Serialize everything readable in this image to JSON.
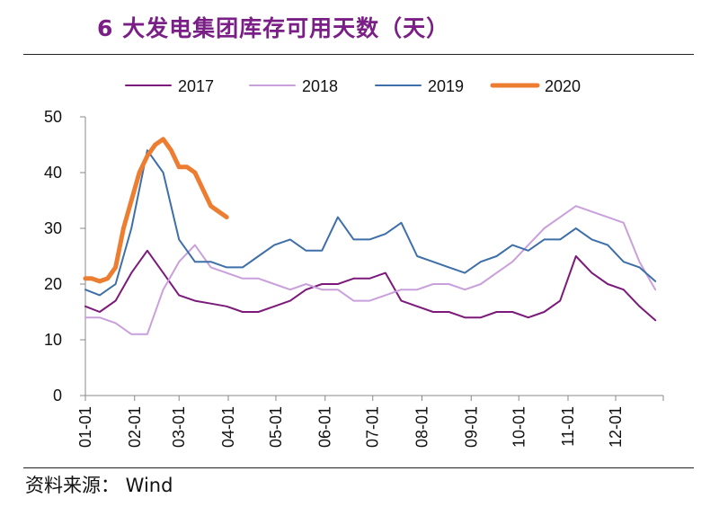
{
  "header": {
    "title": "6 大发电集团库存可用天数（天）"
  },
  "footer": {
    "source": "资料来源： Wind"
  },
  "chart_data": {
    "type": "line",
    "title": "6 大发电集团库存可用天数（天）",
    "xlabel": "",
    "ylabel": "",
    "ylim": [
      0,
      50
    ],
    "yticks": [
      0,
      10,
      20,
      30,
      40,
      50
    ],
    "xticks": [
      "01-01",
      "02-01",
      "03-01",
      "04-01",
      "05-01",
      "06-01",
      "07-01",
      "08-01",
      "09-01",
      "10-01",
      "11-01",
      "12-01"
    ],
    "x_unit": "day-of-year",
    "grid": false,
    "legend": "top",
    "colors": {
      "2017": "#7b1a7b",
      "2018": "#c9a0dc",
      "2019": "#3f6fa8",
      "2020": "#ed7d31"
    },
    "series": [
      {
        "name": "2017",
        "x": [
          1,
          10,
          20,
          30,
          40,
          50,
          60,
          70,
          80,
          90,
          100,
          110,
          120,
          130,
          140,
          150,
          160,
          170,
          180,
          190,
          200,
          210,
          220,
          230,
          240,
          250,
          260,
          270,
          280,
          290,
          300,
          310,
          320,
          330,
          340,
          350,
          360
        ],
        "values": [
          16,
          15,
          17,
          22,
          26,
          22,
          18,
          17,
          16.5,
          16,
          15,
          15,
          16,
          17,
          19,
          20,
          20,
          21,
          21,
          22,
          17,
          16,
          15,
          15,
          14,
          14,
          15,
          15,
          14,
          15,
          17,
          25,
          22,
          20,
          19,
          16,
          13.5
        ]
      },
      {
        "name": "2018",
        "x": [
          1,
          10,
          20,
          30,
          40,
          50,
          60,
          70,
          80,
          90,
          100,
          110,
          120,
          130,
          140,
          150,
          160,
          170,
          180,
          190,
          200,
          210,
          220,
          230,
          240,
          250,
          260,
          270,
          280,
          290,
          300,
          310,
          320,
          330,
          340,
          350,
          360
        ],
        "values": [
          14,
          14,
          13,
          11,
          11,
          19,
          24,
          27,
          23,
          22,
          21,
          21,
          20,
          19,
          20,
          19,
          19,
          17,
          17,
          18,
          19,
          19,
          20,
          20,
          19,
          20,
          22,
          24,
          27,
          30,
          32,
          34,
          33,
          32,
          31,
          24,
          19
        ]
      },
      {
        "name": "2019",
        "x": [
          1,
          10,
          20,
          30,
          40,
          50,
          60,
          70,
          80,
          90,
          100,
          110,
          120,
          130,
          140,
          150,
          160,
          170,
          180,
          190,
          200,
          210,
          220,
          230,
          240,
          250,
          260,
          270,
          280,
          290,
          300,
          310,
          320,
          330,
          340,
          350,
          360
        ],
        "values": [
          19,
          18,
          20,
          30,
          44,
          40,
          28,
          24,
          24,
          23,
          23,
          25,
          27,
          28,
          26,
          26,
          32,
          28,
          28,
          29,
          31,
          25,
          24,
          23,
          22,
          24,
          25,
          27,
          26,
          28,
          28,
          30,
          28,
          27,
          24,
          23,
          20.5
        ]
      },
      {
        "name": "2020",
        "x": [
          1,
          5,
          10,
          15,
          20,
          25,
          30,
          35,
          40,
          45,
          50,
          55,
          60,
          65,
          70,
          75,
          80,
          85,
          90
        ],
        "values": [
          21,
          21,
          20.5,
          21,
          23,
          30,
          35,
          40,
          43,
          45,
          46,
          44,
          41,
          41,
          40,
          37,
          34,
          33,
          32
        ]
      }
    ]
  }
}
